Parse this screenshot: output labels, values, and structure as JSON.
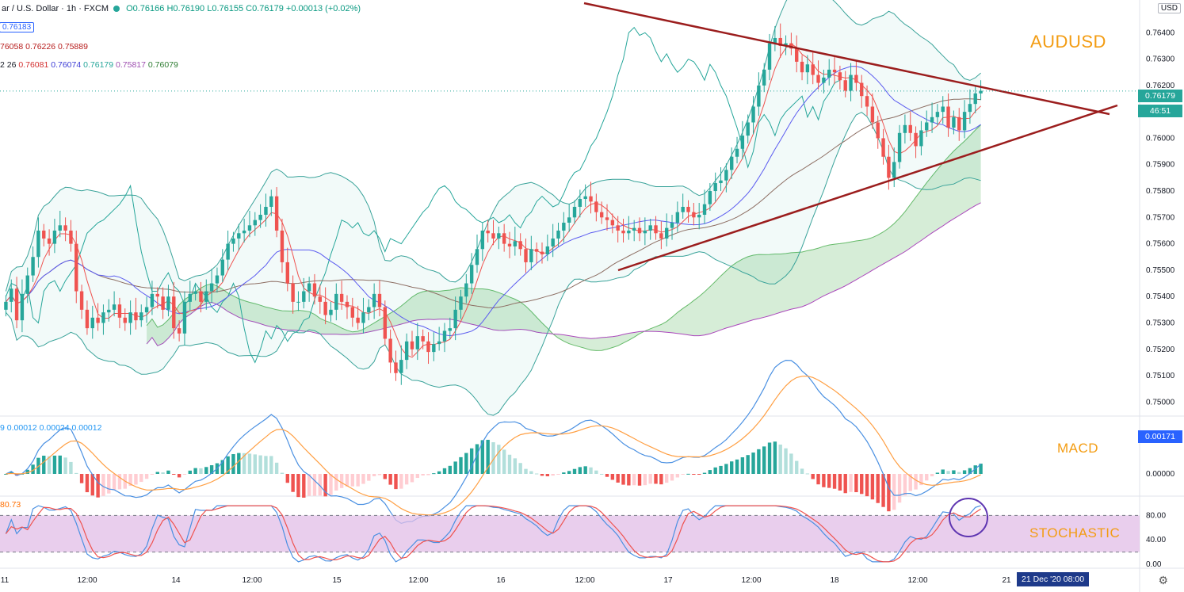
{
  "header": {
    "symbol": "ar / U.S. Dollar · 1h · FXCM",
    "ohlc": "O0.76166  H0.76190  L0.76155  C0.76179  +0.00013 (+0.02%)",
    "price_badge": "0.76183",
    "bb_values": "76058  0.76226  0.75889",
    "ichimoku_prefix": "2 26",
    "ichimoku_values": [
      "0.76081",
      "0.76074",
      "0.76179",
      "0.75817",
      "0.76079"
    ]
  },
  "axis": {
    "currency": "USD",
    "x_labels": [
      "11",
      "12:00",
      "14",
      "12:00",
      "15",
      "12:00",
      "16",
      "12:00",
      "17",
      "12:00",
      "18",
      "12:00",
      "21"
    ],
    "crosshair_date": "21 Dec '20   08:00"
  },
  "price_pane": {
    "last_price": "0.76179",
    "countdown": "46:51",
    "annotation": "AUDUSD"
  },
  "macd_pane": {
    "legend": "9  0.00012  0.00024  0.00012",
    "last_value": "0.00171",
    "annotation": "MACD",
    "y_labels": [
      "0.00000"
    ]
  },
  "stoch_pane": {
    "legend": "80.73",
    "annotation": "STOCHASTIC",
    "y_labels": [
      "80.00",
      "40.00",
      "0.00"
    ]
  },
  "colors": {
    "up": "#26a69a",
    "down": "#ef5350",
    "trendline": "#9b1d1d",
    "bb": "#3aa39a",
    "tenkan": "#ef5350",
    "kijun": "#5b5bf0",
    "lagging": "#26a69a",
    "cloud_up": "#a5d6a7",
    "cloud_down": "#ef9a9a",
    "macd": "#4a90e2",
    "signal": "#ff9f43",
    "stoch_k": "#4a90e2",
    "stoch_d": "#ef5350",
    "stoch_band": "#e1bee7",
    "annotation": "#f39c12"
  },
  "chart_data": {
    "type": "candlestick",
    "timeframe": "1h",
    "price_ylim": [
      0.7495,
      0.765
    ],
    "price_ticks": [
      0.75,
      0.751,
      0.752,
      0.753,
      0.754,
      0.755,
      0.756,
      0.757,
      0.758,
      0.759,
      0.76,
      0.761,
      0.762,
      0.763,
      0.764,
      0.765
    ],
    "closes": [
      0.7538,
      0.7543,
      0.7531,
      0.7541,
      0.7548,
      0.7555,
      0.7565,
      0.7562,
      0.756,
      0.7565,
      0.7567,
      0.7565,
      0.756,
      0.7542,
      0.7535,
      0.7528,
      0.7532,
      0.753,
      0.7534,
      0.7535,
      0.7537,
      0.7532,
      0.753,
      0.7534,
      0.7531,
      0.7534,
      0.7536,
      0.7541,
      0.754,
      0.7535,
      0.754,
      0.7528,
      0.7526,
      0.7538,
      0.7541,
      0.7542,
      0.7538,
      0.7542,
      0.7545,
      0.7548,
      0.7554,
      0.756,
      0.7562,
      0.7564,
      0.7565,
      0.7567,
      0.7569,
      0.7571,
      0.7574,
      0.7578,
      0.7565,
      0.7553,
      0.7545,
      0.7538,
      0.7538,
      0.7542,
      0.7545,
      0.754,
      0.7538,
      0.7533,
      0.7535,
      0.7541,
      0.7538,
      0.7536,
      0.7532,
      0.753,
      0.7534,
      0.7536,
      0.7541,
      0.7536,
      0.7524,
      0.7515,
      0.7511,
      0.7516,
      0.7523,
      0.752,
      0.7525,
      0.7523,
      0.7519,
      0.7522,
      0.7523,
      0.7527,
      0.7528,
      0.7535,
      0.754,
      0.7545,
      0.7552,
      0.7558,
      0.7565,
      0.7564,
      0.7562,
      0.7564,
      0.756,
      0.7559,
      0.7561,
      0.7558,
      0.7553,
      0.7558,
      0.7557,
      0.7556,
      0.7559,
      0.7562,
      0.7565,
      0.7568,
      0.757,
      0.7574,
      0.7577,
      0.7578,
      0.7576,
      0.7572,
      0.757,
      0.7569,
      0.7567,
      0.7565,
      0.7564,
      0.7565,
      0.7566,
      0.7564,
      0.7565,
      0.7567,
      0.7564,
      0.7562,
      0.7566,
      0.7568,
      0.7572,
      0.7574,
      0.7572,
      0.757,
      0.7571,
      0.7575,
      0.758,
      0.7583,
      0.7584,
      0.7588,
      0.7593,
      0.7596,
      0.7601,
      0.7606,
      0.7612,
      0.762,
      0.7626,
      0.7636,
      0.7638,
      0.7635,
      0.7636,
      0.7634,
      0.7629,
      0.7625,
      0.7628,
      0.7624,
      0.7621,
      0.7623,
      0.7626,
      0.7625,
      0.7622,
      0.7618,
      0.7624,
      0.7621,
      0.7616,
      0.7612,
      0.7606,
      0.76,
      0.7593,
      0.7585,
      0.7591,
      0.7602,
      0.7605,
      0.7602,
      0.7597,
      0.7603,
      0.7606,
      0.7608,
      0.761,
      0.7612,
      0.7604,
      0.7608,
      0.7603,
      0.761,
      0.7613,
      0.7617,
      0.7618
    ],
    "trendlines": [
      {
        "from": [
          "Dec 17 02:00",
          0.7652
        ],
        "to": [
          "Dec 21 15:00",
          0.7609
        ]
      },
      {
        "from": [
          "Dec 17 09:00",
          0.7551
        ],
        "to": [
          "Dec 21 17:00",
          0.7614
        ]
      }
    ],
    "macd_ylim": [
      -0.0003,
      0.0008
    ],
    "stoch_ylim": [
      0,
      100
    ],
    "stoch_bands": [
      80,
      20
    ],
    "highlight": "stochastic crossing above 80 circled at right edge"
  }
}
